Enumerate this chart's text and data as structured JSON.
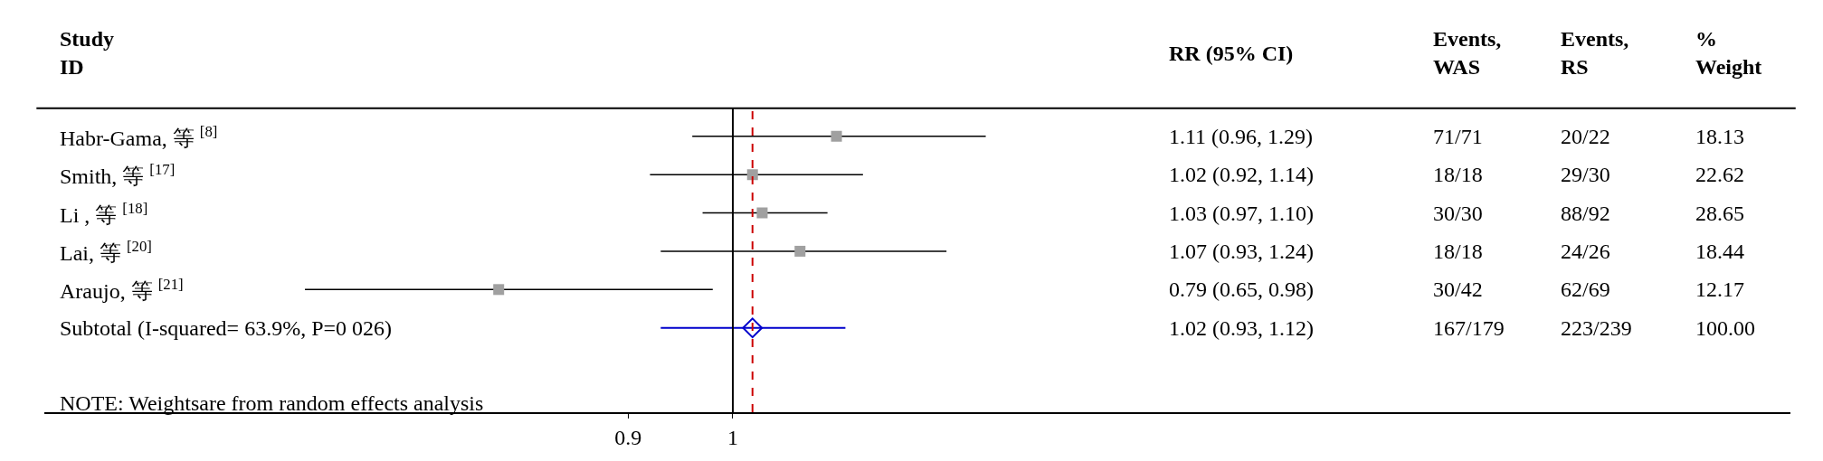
{
  "chart_data": {
    "type": "scatter",
    "orientation": "horizontal",
    "log": "x",
    "categories": [
      "Habr-Gama, 等 $^{[8]}$",
      "Smith, 等 $^{[17]}$",
      "Li , 等 $^{[18]}$",
      "Lai, 等 $^{[20]}$",
      "Araujo, 等 $^{[21]}$",
      "Subtotal (I-squared= 63.9%, P=0 026)"
    ],
    "series": [
      {
        "color": "#a0a0a0",
        "marker": "square",
        "values": [
          1.11,
          1.02,
          1.03,
          1.07,
          0.79,
          null
        ],
        "errors": [
          [
            0.96,
            1.29
          ],
          [
            0.92,
            1.14
          ],
          [
            0.97,
            1.1
          ],
          [
            0.93,
            1.24
          ],
          [
            0.65,
            0.98
          ],
          null
        ]
      },
      {
        "color": "#0000cc",
        "marker": "diamond",
        "values": [
          null,
          null,
          null,
          null,
          null,
          1.02
        ],
        "errors": [
          null,
          null,
          null,
          null,
          null,
          [
            0.93,
            1.12
          ]
        ]
      }
    ],
    "xlim": [
      0.5,
      2.9
    ],
    "xticks": [
      0.9,
      1
    ],
    "ref_lines": [
      {
        "axis": "x",
        "value": 1,
        "color": "#000000",
        "line_style": "solid"
      },
      {
        "axis": "x",
        "value": 1.02,
        "color": "#cc0000",
        "line_style": "dashed"
      }
    ],
    "annotations": [
      "Study\nID",
      "RR (95% CI)",
      "Events,\nWAS",
      "Events,\nRS",
      "%\nWeight",
      "1.11 (0.96, 1.29)",
      "71/71",
      "20/22",
      "18.13",
      "1.02 (0.92, 1.14)",
      "18/18",
      "29/30",
      "22.62",
      "1.03 (0.97, 1.10)",
      "30/30",
      "88/92",
      "28.65",
      "1.07 (0.93, 1.24)",
      "18/18",
      "24/26",
      "18.44",
      "0.79 (0.65, 0.98)",
      "30/42",
      "62/69",
      "12.17",
      "1.02 (0.93, 1.12)",
      "167/179",
      "223/239",
      "100.00",
      "NOTE: Weightsare from random effects analysis"
    ]
  }
}
